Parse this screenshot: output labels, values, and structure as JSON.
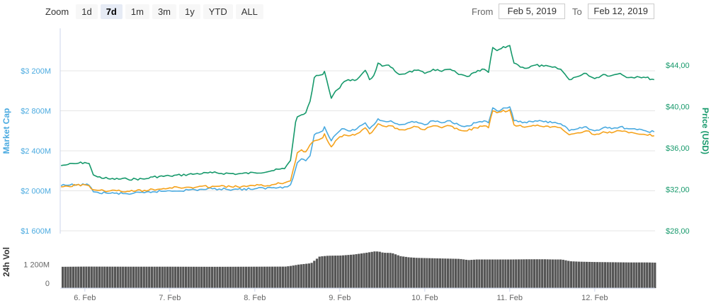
{
  "zoom": {
    "label": "Zoom",
    "buttons": [
      "1d",
      "7d",
      "1m",
      "3m",
      "1y",
      "YTD",
      "ALL"
    ],
    "active": "7d"
  },
  "range": {
    "from_label": "From",
    "from_value": "Feb 5, 2019",
    "to_label": "To",
    "to_value": "Feb 12, 2019"
  },
  "chart_data": {
    "type": "line",
    "left_axis": {
      "title": "Market Cap",
      "ticks": [
        "$1 600M",
        "$2 000M",
        "$2 400M",
        "$2 800M",
        "$3 200M"
      ],
      "tick_values": [
        1600,
        2000,
        2400,
        2800,
        3200
      ],
      "color": "#4aaae0"
    },
    "right_axis": {
      "title": "Price (USD)",
      "ticks": [
        "$28,00",
        "$32,00",
        "$36,00",
        "$40,00",
        "$44,00"
      ],
      "tick_values": [
        28,
        32,
        36,
        40,
        44
      ],
      "color": "#16996b"
    },
    "volume_axis": {
      "title": "24h Vol",
      "ticks": [
        "0",
        "1 200M"
      ],
      "tick_values": [
        0,
        1200
      ],
      "max": 2400
    },
    "x_ticks": [
      "6. Feb",
      "7. Feb",
      "8. Feb",
      "9. Feb",
      "10. Feb",
      "11. Feb",
      "12. Feb"
    ],
    "x_tick_values": [
      1,
      2,
      3,
      4,
      5,
      6,
      7
    ],
    "x_range": [
      0.71,
      7.71
    ],
    "series": [
      {
        "color": "#16996b",
        "axis": "price",
        "x": [
          0.72,
          0.8,
          0.9,
          1.0,
          1.05,
          1.1,
          1.15,
          1.3,
          1.5,
          1.7,
          1.8,
          2.0,
          2.3,
          2.5,
          2.8,
          3.0,
          3.2,
          3.35,
          3.42,
          3.48,
          3.5,
          3.55,
          3.6,
          3.65,
          3.7,
          3.75,
          3.8,
          3.82,
          3.9,
          3.95,
          4.0,
          4.05,
          4.1,
          4.2,
          4.3,
          4.35,
          4.4,
          4.45,
          4.5,
          4.55,
          4.6,
          4.7,
          4.8,
          4.9,
          5.0,
          5.1,
          5.2,
          5.3,
          5.4,
          5.5,
          5.6,
          5.7,
          5.75,
          5.8,
          5.85,
          5.9,
          6.0,
          6.05,
          6.1,
          6.15,
          6.2,
          6.3,
          6.4,
          6.5,
          6.6,
          6.7,
          6.75,
          6.8,
          6.9,
          7.0,
          7.1,
          7.2,
          7.3,
          7.4,
          7.5,
          7.6,
          7.7
        ],
        "y": [
          34.3,
          34.4,
          34.5,
          34.6,
          34.5,
          33.4,
          33.2,
          33.0,
          33.0,
          33.0,
          33.2,
          33.3,
          33.5,
          33.6,
          33.5,
          33.6,
          33.8,
          34.0,
          34.8,
          38.5,
          39.0,
          39.2,
          39.4,
          40.5,
          42.8,
          43.0,
          43.1,
          43.4,
          40.8,
          41.5,
          41.8,
          42.4,
          42.6,
          42.6,
          43.5,
          42.6,
          43.0,
          44.2,
          43.9,
          44.0,
          43.8,
          43.1,
          43.3,
          43.5,
          43.2,
          43.6,
          43.4,
          43.6,
          43.1,
          42.9,
          43.3,
          43.6,
          43.3,
          45.7,
          45.4,
          45.6,
          45.9,
          44.2,
          44.0,
          43.8,
          43.7,
          44.0,
          43.9,
          43.8,
          43.6,
          42.6,
          42.8,
          42.9,
          43.2,
          42.7,
          43.1,
          43.0,
          43.2,
          42.8,
          42.9,
          42.8,
          42.6
        ]
      },
      {
        "color": "#4aaae0",
        "axis": "marketcap",
        "x": [
          0.72,
          0.8,
          0.9,
          1.0,
          1.05,
          1.1,
          1.15,
          1.3,
          1.5,
          1.7,
          1.8,
          2.0,
          2.3,
          2.5,
          2.8,
          3.0,
          3.2,
          3.35,
          3.42,
          3.48,
          3.5,
          3.55,
          3.6,
          3.65,
          3.7,
          3.75,
          3.8,
          3.82,
          3.9,
          3.95,
          4.0,
          4.05,
          4.1,
          4.2,
          4.3,
          4.35,
          4.4,
          4.45,
          4.5,
          4.55,
          4.6,
          4.7,
          4.8,
          4.9,
          5.0,
          5.1,
          5.2,
          5.3,
          5.4,
          5.5,
          5.6,
          5.7,
          5.75,
          5.8,
          5.85,
          5.9,
          6.0,
          6.05,
          6.1,
          6.15,
          6.2,
          6.3,
          6.4,
          6.5,
          6.6,
          6.7,
          6.75,
          6.8,
          6.9,
          7.0,
          7.1,
          7.2,
          7.3,
          7.4,
          7.5,
          7.6,
          7.7
        ],
        "y": [
          2050,
          2055,
          2060,
          2060,
          2055,
          1990,
          1985,
          1975,
          1970,
          1980,
          1990,
          2000,
          2010,
          2020,
          2015,
          2020,
          2030,
          2040,
          2060,
          2220,
          2280,
          2320,
          2300,
          2350,
          2560,
          2580,
          2600,
          2640,
          2500,
          2560,
          2600,
          2620,
          2600,
          2620,
          2680,
          2620,
          2660,
          2720,
          2700,
          2690,
          2700,
          2660,
          2680,
          2690,
          2660,
          2700,
          2680,
          2700,
          2660,
          2650,
          2680,
          2700,
          2680,
          2830,
          2800,
          2810,
          2840,
          2700,
          2690,
          2680,
          2680,
          2700,
          2690,
          2680,
          2670,
          2600,
          2610,
          2620,
          2640,
          2600,
          2630,
          2620,
          2640,
          2620,
          2610,
          2600,
          2590
        ]
      },
      {
        "color": "#f5a21b",
        "axis": "marketcap",
        "x": [
          0.72,
          0.8,
          0.9,
          1.0,
          1.05,
          1.1,
          1.15,
          1.3,
          1.5,
          1.7,
          1.8,
          2.0,
          2.3,
          2.5,
          2.8,
          3.0,
          3.2,
          3.35,
          3.42,
          3.48,
          3.5,
          3.55,
          3.6,
          3.65,
          3.7,
          3.75,
          3.8,
          3.82,
          3.9,
          3.95,
          4.0,
          4.05,
          4.1,
          4.2,
          4.3,
          4.35,
          4.4,
          4.45,
          4.5,
          4.55,
          4.6,
          4.7,
          4.8,
          4.9,
          5.0,
          5.1,
          5.2,
          5.3,
          5.4,
          5.5,
          5.6,
          5.7,
          5.75,
          5.8,
          5.85,
          5.9,
          6.0,
          6.05,
          6.1,
          6.15,
          6.2,
          6.3,
          6.4,
          6.5,
          6.6,
          6.7,
          6.75,
          6.8,
          6.9,
          7.0,
          7.1,
          7.2,
          7.3,
          7.4,
          7.5,
          7.6,
          7.7
        ],
        "y": [
          2040,
          2045,
          2055,
          2060,
          2050,
          2010,
          2005,
          2000,
          1995,
          2005,
          2015,
          2030,
          2035,
          2045,
          2040,
          2050,
          2060,
          2080,
          2100,
          2300,
          2380,
          2410,
          2390,
          2460,
          2500,
          2510,
          2530,
          2570,
          2440,
          2500,
          2540,
          2560,
          2550,
          2570,
          2630,
          2570,
          2610,
          2670,
          2650,
          2640,
          2650,
          2610,
          2620,
          2640,
          2610,
          2650,
          2630,
          2650,
          2610,
          2600,
          2630,
          2650,
          2630,
          2800,
          2780,
          2790,
          2810,
          2660,
          2650,
          2640,
          2640,
          2650,
          2640,
          2640,
          2630,
          2560,
          2570,
          2580,
          2600,
          2560,
          2590,
          2580,
          2600,
          2580,
          2570,
          2560,
          2550
        ]
      },
      {
        "color": "#555555",
        "axis": "volume",
        "x": [
          0.72,
          1.0,
          1.5,
          2.0,
          2.5,
          3.0,
          3.35,
          3.42,
          3.5,
          3.65,
          3.75,
          3.85,
          4.0,
          4.15,
          4.3,
          4.4,
          4.45,
          4.5,
          4.6,
          4.7,
          4.8,
          4.9,
          5.0,
          5.2,
          5.4,
          5.5,
          5.6,
          5.8,
          6.0,
          6.2,
          6.4,
          6.5,
          6.6,
          6.7,
          6.8,
          7.0,
          7.2,
          7.4,
          7.6,
          7.7
        ],
        "y": [
          1080,
          1090,
          1085,
          1085,
          1080,
          1085,
          1090,
          1130,
          1190,
          1260,
          1600,
          1640,
          1650,
          1700,
          1790,
          1860,
          1850,
          1790,
          1780,
          1620,
          1560,
          1530,
          1520,
          1500,
          1480,
          1420,
          1450,
          1450,
          1450,
          1460,
          1460,
          1450,
          1450,
          1360,
          1340,
          1320,
          1310,
          1300,
          1300,
          1290
        ]
      }
    ]
  }
}
